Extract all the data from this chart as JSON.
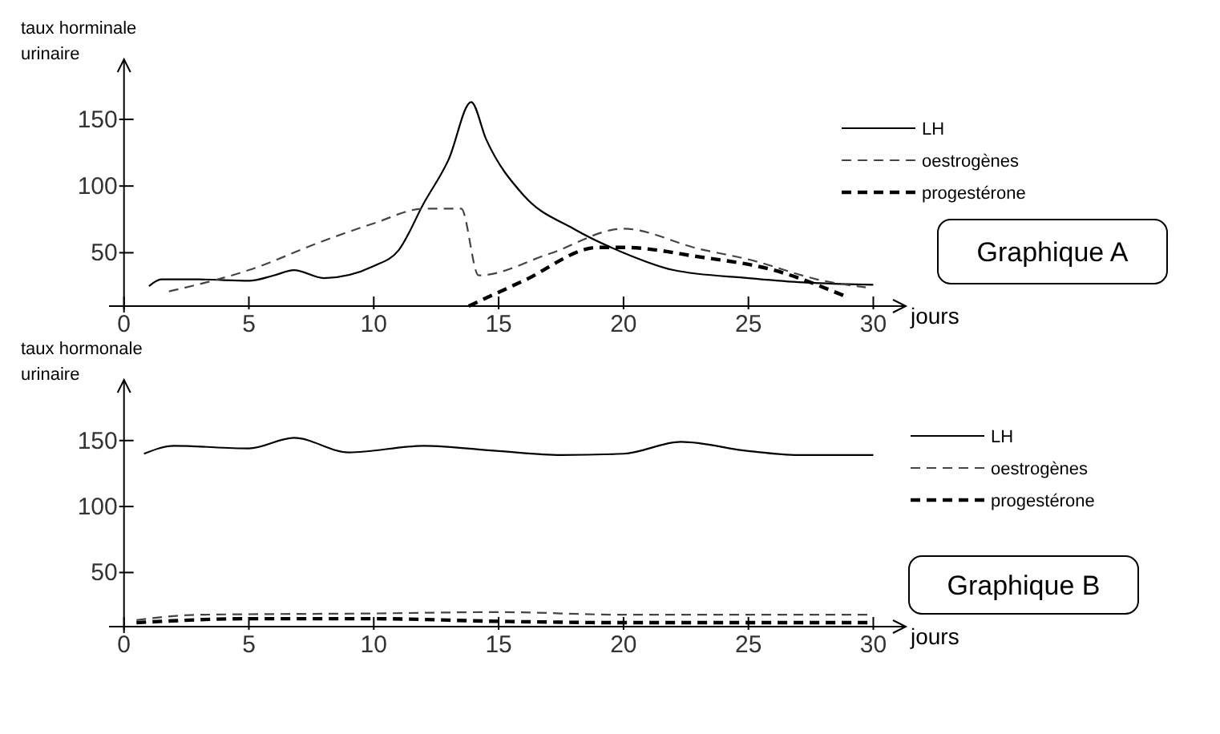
{
  "chart_data": [
    {
      "type": "line",
      "annotations": [
        "Graphique A"
      ],
      "xlabel": "jours",
      "ylabel": "taux horminale urinaire",
      "xlim": [
        -0.6,
        31.3
      ],
      "xticks": [
        0,
        5,
        10,
        15,
        20,
        25,
        30
      ],
      "ylim": [
        10,
        195
      ],
      "yticks": [
        50,
        100,
        150
      ],
      "legend": "top right",
      "grid": false,
      "marker": "none",
      "series": [
        {
          "name": "LH",
          "color": "#000000",
          "line_style": "solid",
          "x": [
            1,
            1.5,
            3,
            5,
            6,
            6.8,
            8,
            10,
            11,
            12,
            13,
            13.9,
            14.5,
            16,
            18,
            20,
            22,
            25,
            27,
            30
          ],
          "values": [
            25,
            30,
            30,
            29,
            33,
            37,
            31,
            40,
            52,
            87,
            120,
            163,
            135,
            93,
            68,
            50,
            37,
            31,
            28,
            26
          ]
        },
        {
          "name": "oestrogènes",
          "color": "#444444",
          "line_style": "dashed",
          "x": [
            1.8,
            5,
            8,
            10,
            12,
            13.5,
            14.2,
            17,
            20,
            23,
            25,
            28,
            29.7
          ],
          "values": [
            21,
            37,
            59,
            72,
            83,
            83,
            33,
            49,
            68,
            53,
            45,
            29,
            24
          ]
        },
        {
          "name": "progestérone",
          "color": "#000000",
          "line_style": "dashed",
          "x": [
            13.8,
            16,
            19,
            20,
            23,
            26,
            28.8
          ],
          "values": [
            10,
            29,
            54,
            54,
            47,
            37,
            18
          ]
        }
      ]
    },
    {
      "type": "line",
      "annotations": [
        "Graphique B"
      ],
      "xlabel": "jours",
      "ylabel": "taux hormonale urinaire",
      "xlim": [
        -0.6,
        31.3
      ],
      "xticks": [
        0,
        5,
        10,
        15,
        20,
        25,
        30
      ],
      "ylim": [
        9,
        196
      ],
      "yticks": [
        50,
        100,
        150
      ],
      "legend": "right",
      "grid": false,
      "marker": "none",
      "series": [
        {
          "name": "LH",
          "color": "#000000",
          "line_style": "solid",
          "x": [
            0.8,
            2,
            5,
            6.8,
            9,
            12,
            15,
            17.5,
            20,
            22.3,
            25,
            27,
            30
          ],
          "values": [
            140,
            146,
            144,
            152,
            141,
            146,
            142,
            139,
            140,
            149,
            142,
            139,
            139
          ]
        },
        {
          "name": "oestrogènes",
          "color": "#444444",
          "line_style": "dashed",
          "x": [
            0.5,
            3,
            10,
            15,
            20,
            30
          ],
          "values": [
            14,
            18,
            19,
            20,
            18,
            18
          ]
        },
        {
          "name": "progestérone",
          "color": "#000000",
          "line_style": "dashed",
          "x": [
            0.5,
            5,
            10,
            15,
            20,
            30
          ],
          "values": [
            12,
            15,
            15,
            13,
            12,
            12
          ]
        }
      ]
    }
  ]
}
